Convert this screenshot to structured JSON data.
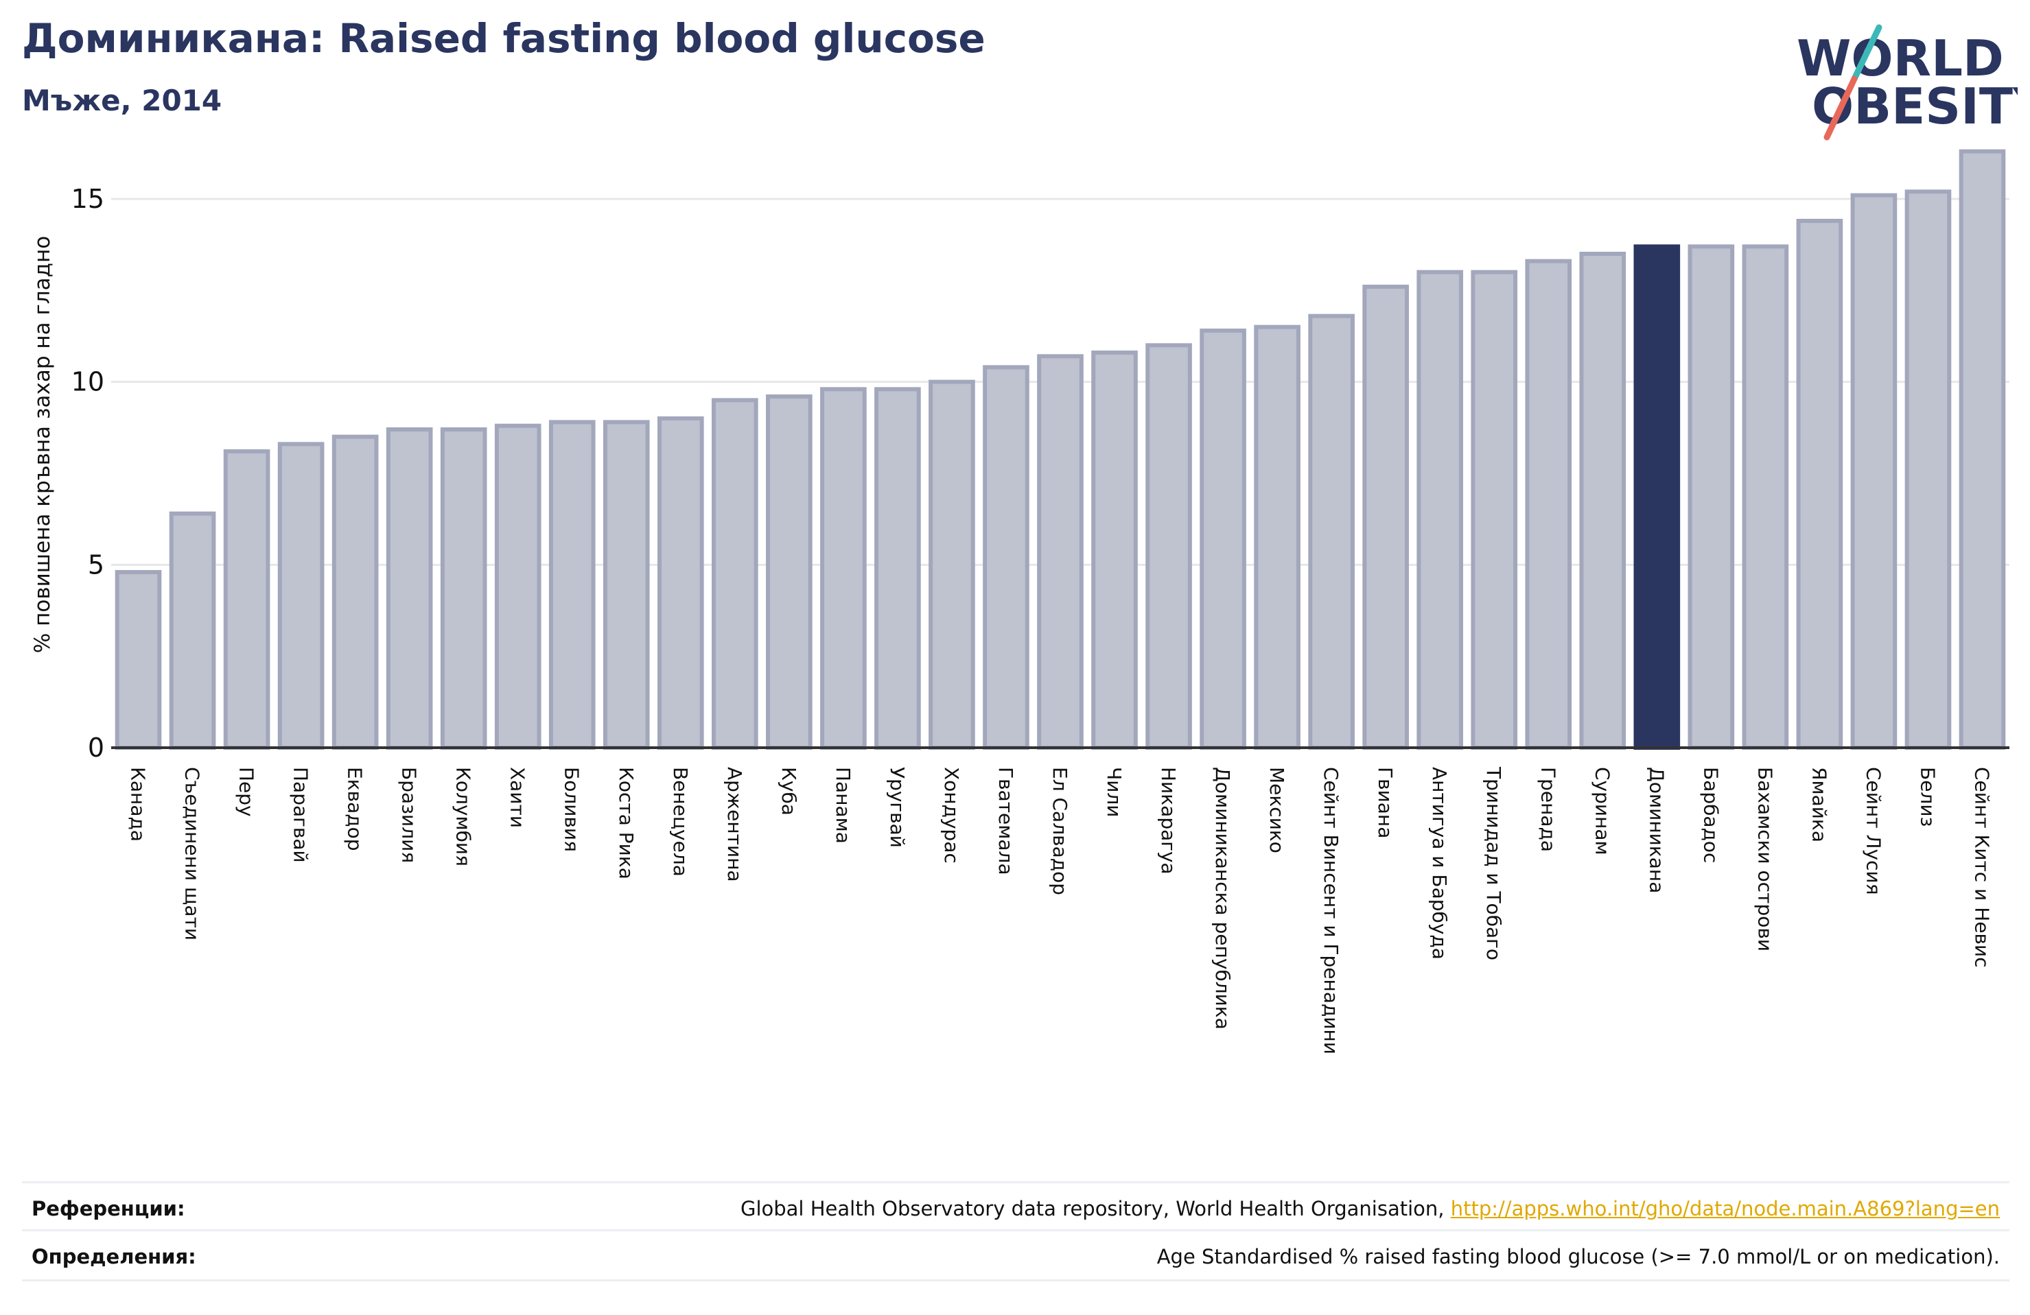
{
  "header": {
    "title": "Доминикана: Raised fasting blood glucose",
    "subtitle": "Мъже, 2014"
  },
  "logo": {
    "line1": "WORLD",
    "line2": "OBESITY",
    "text_color": "#2a3560",
    "slash_colors": [
      "#3cb8b8",
      "#e8685a"
    ]
  },
  "colors": {
    "bar_fill": "#bfc2cf",
    "bar_stroke": "#a2a7bc",
    "highlight": "#2a3560",
    "grid": "#e6e7ea",
    "axis": "#333333"
  },
  "chart_data": {
    "type": "bar",
    "ylabel": "% повишена кръвна захар на гладно",
    "xlabel": "",
    "ylim": [
      0,
      16.5
    ],
    "yticks": [
      0,
      5,
      10,
      15
    ],
    "grid": true,
    "highlight_category": "Доминикана",
    "categories": [
      "Канада",
      "Съединени щати",
      "Перу",
      "Парагвай",
      "Еквадор",
      "Бразилия",
      "Колумбия",
      "Хаити",
      "Боливия",
      "Коста Рика",
      "Венецуела",
      "Аржентина",
      "Куба",
      "Панама",
      "Уругвай",
      "Хондурас",
      "Гватемала",
      "Ел Салвадор",
      "Чили",
      "Никарагуа",
      "Доминиканска република",
      "Мексико",
      "Сейнт Винсент и Гренадини",
      "Гвиана",
      "Антигуа и Барбуда",
      "Тринидад и Тобаго",
      "Гренада",
      "Суринам",
      "Доминикана",
      "Барбадос",
      "Бахамски острови",
      "Ямайка",
      "Сейнт Лусия",
      "Белиз",
      "Сейнт Китс и Невис"
    ],
    "values": [
      4.8,
      6.4,
      8.1,
      8.3,
      8.5,
      8.7,
      8.7,
      8.8,
      8.9,
      8.9,
      9.0,
      9.5,
      9.6,
      9.8,
      9.8,
      10.0,
      10.4,
      10.7,
      10.8,
      11.0,
      11.4,
      11.5,
      11.8,
      12.6,
      13.0,
      13.0,
      13.3,
      13.5,
      13.7,
      13.7,
      13.7,
      14.4,
      15.1,
      15.2,
      16.3
    ]
  },
  "footer": {
    "references_label": "Референции:",
    "references_text": "Global Health Observatory data repository, World Health Organisation,",
    "references_link": "http://apps.who.int/gho/data/node.main.A869?lang=en",
    "definitions_label": "Определения:",
    "definitions_text": "Age Standardised % raised fasting blood glucose (>= 7.0 mmol/L or on medication)."
  }
}
